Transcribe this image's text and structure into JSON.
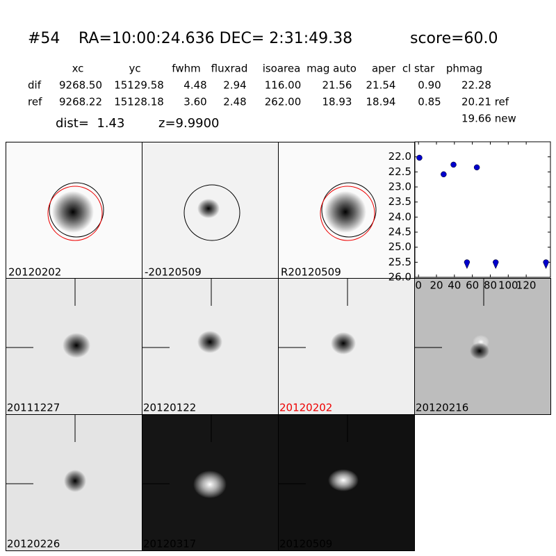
{
  "header": {
    "id": "#54",
    "coords": "RA=10:00:24.636 DEC= 2:31:49.38",
    "score": "score=60.0"
  },
  "table": {
    "columns": [
      "xc",
      "yc",
      "fwhm",
      "fluxrad",
      "isoarea",
      "mag auto",
      "aper",
      "cl star",
      "phmag"
    ],
    "rows": [
      [
        "dif",
        "9268.50",
        "15129.58",
        "4.48",
        "2.94",
        "116.00",
        "21.56",
        "21.54",
        "0.90",
        "22.28"
      ],
      [
        "ref",
        "9268.22",
        "15128.18",
        "3.60",
        "2.48",
        "262.00",
        "18.93",
        "18.94",
        "0.85",
        "20.21 ref"
      ]
    ],
    "extra": "19.66 new"
  },
  "dist": "dist=  1.43",
  "z": "z=9.9900",
  "stamps": [
    "20120202",
    "-20120509",
    "R20120509",
    "20111227",
    "20120122",
    "20120202",
    "20120216",
    "20120226",
    "20120317",
    "20120509"
  ],
  "chart_data": {
    "type": "scatter",
    "x": [
      1,
      28,
      39,
      65
    ],
    "values": [
      22.03,
      22.58,
      22.26,
      22.35
    ],
    "limit_x": [
      54,
      86,
      142
    ],
    "limit_values": [
      25.55,
      25.55,
      25.55
    ],
    "color": "#0000cc",
    "xlim": [
      -4,
      147
    ],
    "ylim": [
      21.5,
      26
    ],
    "y_inverted": true,
    "xticks": [
      0,
      20,
      40,
      60,
      80,
      100,
      120
    ],
    "yticks": [
      {
        "value": 22,
        "label": "22.0"
      },
      22.5,
      {
        "value": 23,
        "label": "23.0"
      },
      23.5,
      {
        "value": 24,
        "label": "24.0"
      },
      24.5,
      {
        "value": 25,
        "label": "25.0"
      },
      25.5,
      {
        "value": 26,
        "label": "26.0"
      }
    ]
  }
}
